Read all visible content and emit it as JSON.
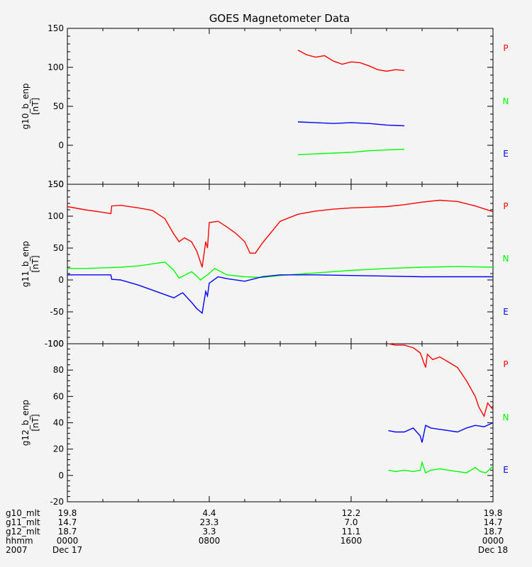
{
  "title": "GOES Magnetometer Data",
  "colors": {
    "P": "#ff0000",
    "N": "#00ff00",
    "E": "#0000ff",
    "background": "#f4f4f4",
    "axes": "#000000"
  },
  "chart_data": [
    {
      "type": "line",
      "title": "GOES Magnetometer Data",
      "ylabel": "g10_b_enp",
      "yunit": "[nT]",
      "ylim": [
        -50,
        150
      ],
      "yticks": [
        -50,
        0,
        50,
        100,
        150
      ],
      "xlim": [
        0,
        24
      ],
      "legend": [
        "P",
        "N",
        "E"
      ],
      "series": [
        {
          "name": "P",
          "color": "#ff0000",
          "x": [
            13.0,
            13.5,
            14.0,
            14.5,
            15.0,
            15.5,
            16.0,
            16.5,
            17.0,
            17.5,
            18.0,
            18.5,
            19.0
          ],
          "y": [
            122,
            116,
            113,
            115,
            108,
            104,
            107,
            106,
            102,
            97,
            95,
            97,
            96
          ]
        },
        {
          "name": "N",
          "color": "#00ff00",
          "x": [
            13.0,
            14.0,
            15.0,
            16.0,
            17.0,
            18.0,
            19.0
          ],
          "y": [
            -12,
            -11,
            -10,
            -9,
            -7,
            -6,
            -5
          ]
        },
        {
          "name": "E",
          "color": "#0000ff",
          "x": [
            13.0,
            14.0,
            15.0,
            16.0,
            17.0,
            18.0,
            19.0
          ],
          "y": [
            30,
            29,
            28,
            29,
            28,
            26,
            25
          ]
        }
      ]
    },
    {
      "type": "line",
      "ylabel": "g11_b_enp",
      "yunit": "[nT]",
      "ylim": [
        -100,
        150
      ],
      "yticks": [
        -100,
        -50,
        0,
        50,
        100,
        150
      ],
      "xlim": [
        0,
        24
      ],
      "legend": [
        "P",
        "N",
        "E"
      ],
      "series": [
        {
          "name": "P",
          "color": "#ff0000",
          "x": [
            0,
            1,
            2,
            2.45,
            2.5,
            3,
            4,
            4.8,
            5.5,
            6,
            6.3,
            6.6,
            7,
            7.3,
            7.6,
            7.8,
            7.9,
            8.0,
            8.5,
            9,
            9.5,
            10,
            10.3,
            10.6,
            11,
            12,
            13,
            14,
            15,
            16,
            17,
            18,
            19,
            20,
            21,
            22,
            23,
            24
          ],
          "y": [
            115,
            110,
            106,
            104,
            116,
            117,
            113,
            109,
            96,
            72,
            60,
            66,
            60,
            45,
            20,
            60,
            50,
            90,
            92,
            83,
            73,
            60,
            42,
            42,
            58,
            92,
            103,
            108,
            111,
            113,
            114,
            115,
            118,
            122,
            125,
            123,
            116,
            107
          ]
        },
        {
          "name": "N",
          "color": "#00ff00",
          "x": [
            0,
            1,
            2,
            3,
            4,
            5,
            5.5,
            6,
            6.3,
            7,
            7.3,
            7.5,
            7.9,
            8.3,
            9,
            10,
            11,
            12,
            14,
            16,
            18,
            20,
            22,
            24
          ],
          "y": [
            18,
            18,
            19,
            20,
            22,
            26,
            28,
            15,
            3,
            13,
            6,
            0,
            8,
            18,
            8,
            5,
            4,
            7,
            11,
            15,
            18,
            20,
            21,
            20
          ]
        },
        {
          "name": "E",
          "color": "#0000ff",
          "x": [
            0,
            1,
            2,
            2.45,
            2.5,
            3,
            4,
            5,
            6,
            6.5,
            7,
            7.3,
            7.6,
            7.8,
            7.9,
            8.0,
            8.5,
            9,
            10,
            11,
            12,
            14,
            16,
            18,
            20,
            22,
            24
          ],
          "y": [
            8,
            8,
            8,
            8,
            1,
            0,
            -8,
            -18,
            -28,
            -20,
            -35,
            -45,
            -52,
            -18,
            -25,
            -5,
            5,
            2,
            -2,
            5,
            8,
            8,
            7,
            6,
            5,
            5,
            5
          ]
        }
      ]
    },
    {
      "type": "line",
      "ylabel": "g12_b_enp",
      "yunit": "[nT]",
      "ylim": [
        -20,
        100
      ],
      "yticks": [
        -20,
        0,
        20,
        40,
        60,
        80,
        100
      ],
      "xlim": [
        0,
        24
      ],
      "legend": [
        "P",
        "N",
        "E"
      ],
      "series": [
        {
          "name": "P",
          "color": "#ff0000",
          "x": [
            18.1,
            18.5,
            19.0,
            19.5,
            19.9,
            20.2,
            20.3,
            20.6,
            21.0,
            21.5,
            22.0,
            22.5,
            23.0,
            23.2,
            23.5,
            23.7,
            24.0
          ],
          "y": [
            100,
            99,
            99,
            97,
            93,
            82,
            92,
            88,
            90,
            86,
            82,
            72,
            60,
            52,
            45,
            55,
            50
          ]
        },
        {
          "name": "N",
          "color": "#00ff00",
          "x": [
            18.1,
            18.5,
            19.0,
            19.5,
            19.9,
            20.0,
            20.2,
            20.5,
            21.0,
            21.5,
            22.0,
            22.5,
            23.0,
            23.3,
            23.6,
            24.0
          ],
          "y": [
            4,
            3,
            4,
            3,
            4,
            10,
            2,
            4,
            5,
            4,
            3,
            2,
            6,
            3,
            2,
            7
          ]
        },
        {
          "name": "E",
          "color": "#0000ff",
          "x": [
            18.1,
            18.5,
            19.0,
            19.5,
            19.9,
            20.0,
            20.2,
            20.5,
            21.0,
            21.5,
            22.0,
            22.5,
            23.0,
            23.5,
            24.0
          ],
          "y": [
            34,
            33,
            33,
            36,
            30,
            25,
            38,
            36,
            35,
            34,
            33,
            36,
            38,
            37,
            40
          ]
        }
      ]
    }
  ],
  "x_axis": {
    "rows": [
      {
        "label": "g10_mlt",
        "values": [
          "19.8",
          "4.4",
          "12.2",
          "19.8"
        ]
      },
      {
        "label": "g11_mlt",
        "values": [
          "14.7",
          "23.3",
          "7.0",
          "14.7"
        ]
      },
      {
        "label": "g12_mlt",
        "values": [
          "18.7",
          "3.3",
          "11.1",
          "18.7"
        ]
      },
      {
        "label": "hhmm",
        "values": [
          "0000",
          "0800",
          "1600",
          "0000"
        ]
      },
      {
        "label": "2007",
        "values": [
          "Dec 17",
          "",
          "",
          "Dec 18"
        ]
      }
    ]
  }
}
